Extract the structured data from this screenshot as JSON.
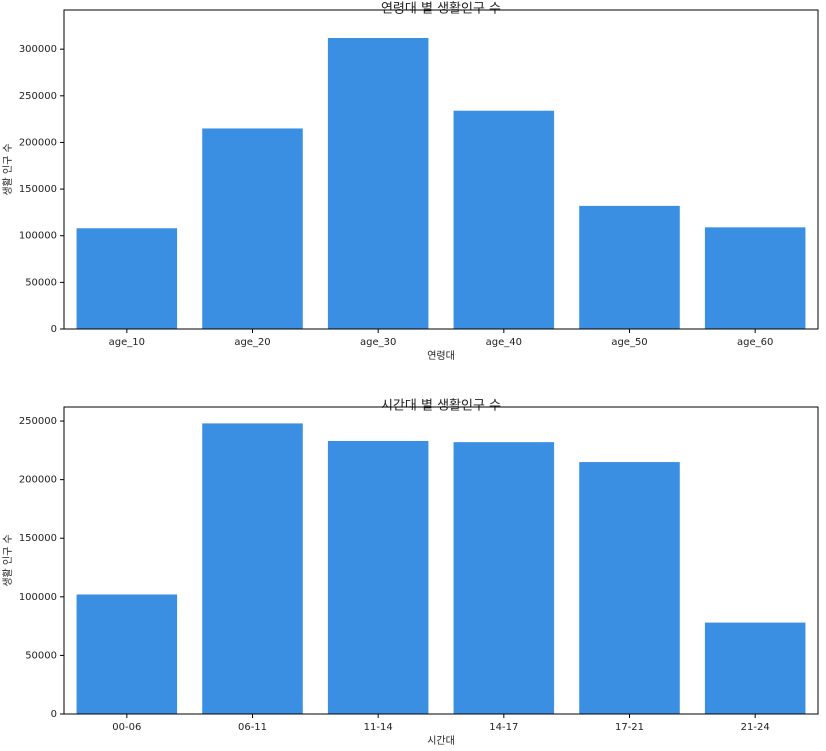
{
  "chart_data": [
    {
      "type": "bar",
      "title": "연령대 별 생활인구 수",
      "x_label": "연령대",
      "y_label": "생활 인구 수",
      "categories": [
        "age_10",
        "age_20",
        "age_30",
        "age_40",
        "age_50",
        "age_60"
      ],
      "values": [
        108000,
        215000,
        312000,
        234000,
        132000,
        109000
      ],
      "color": "#3a8fe3",
      "ylim": [
        0,
        342000
      ],
      "yticks": [
        0,
        50000,
        100000,
        150000,
        200000,
        250000,
        300000
      ]
    },
    {
      "type": "bar",
      "title": "시간대 별 생활인구 수",
      "x_label": "시간대",
      "y_label": "생활 인구 수",
      "categories": [
        "00-06",
        "06-11",
        "11-14",
        "14-17",
        "17-21",
        "21-24"
      ],
      "values": [
        102000,
        248000,
        233000,
        232000,
        215000,
        78000
      ],
      "color": "#3a8fe3",
      "ylim": [
        0,
        262000
      ],
      "yticks": [
        0,
        50000,
        100000,
        150000,
        200000,
        250000
      ]
    }
  ]
}
